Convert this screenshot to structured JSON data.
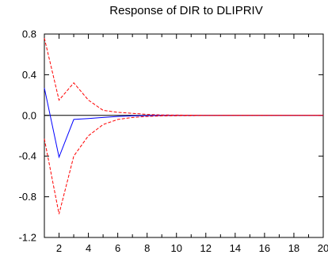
{
  "chart_data": {
    "type": "line",
    "title": "Response of DIR to DLIPRIV",
    "xlim": [
      1,
      20
    ],
    "ylim": [
      -1.2,
      0.8
    ],
    "x_ticks": [
      2,
      4,
      6,
      8,
      10,
      12,
      14,
      16,
      18,
      20
    ],
    "y_ticks": [
      0.8,
      0.4,
      0.0,
      -0.4,
      -0.8,
      -1.2
    ],
    "y_tick_labels": [
      "0.8",
      "0.4",
      "0.0",
      "-0.4",
      "-0.8",
      "-1.2"
    ],
    "zero_line": true,
    "grid": false,
    "x": [
      1,
      2,
      3,
      4,
      5,
      6,
      7,
      8,
      9,
      10,
      11,
      12,
      13,
      14,
      15,
      16,
      17,
      18,
      19,
      20
    ],
    "series": [
      {
        "role": "response",
        "color": "#0000ff",
        "style": "solid",
        "values": [
          0.27,
          -0.41,
          -0.04,
          -0.03,
          -0.02,
          -0.01,
          -0.005,
          -0.002,
          -0.001,
          0.0,
          0.0,
          0.0,
          0.0,
          0.0,
          0.0,
          0.0,
          0.0,
          0.0,
          0.0,
          0.0
        ]
      },
      {
        "role": "upper-band",
        "color": "#ff0000",
        "style": "dashed",
        "values": [
          0.76,
          0.15,
          0.32,
          0.15,
          0.05,
          0.03,
          0.02,
          0.01,
          0.005,
          0.003,
          0.002,
          0.001,
          0.0,
          0.0,
          0.0,
          0.0,
          0.0,
          0.0,
          0.0,
          0.0
        ]
      },
      {
        "role": "lower-band",
        "color": "#ff0000",
        "style": "dashed",
        "values": [
          -0.23,
          -0.97,
          -0.4,
          -0.2,
          -0.09,
          -0.04,
          -0.02,
          -0.01,
          -0.005,
          -0.003,
          -0.002,
          -0.001,
          0.0,
          0.0,
          0.0,
          0.0,
          0.0,
          0.0,
          0.0,
          0.0
        ]
      }
    ]
  }
}
